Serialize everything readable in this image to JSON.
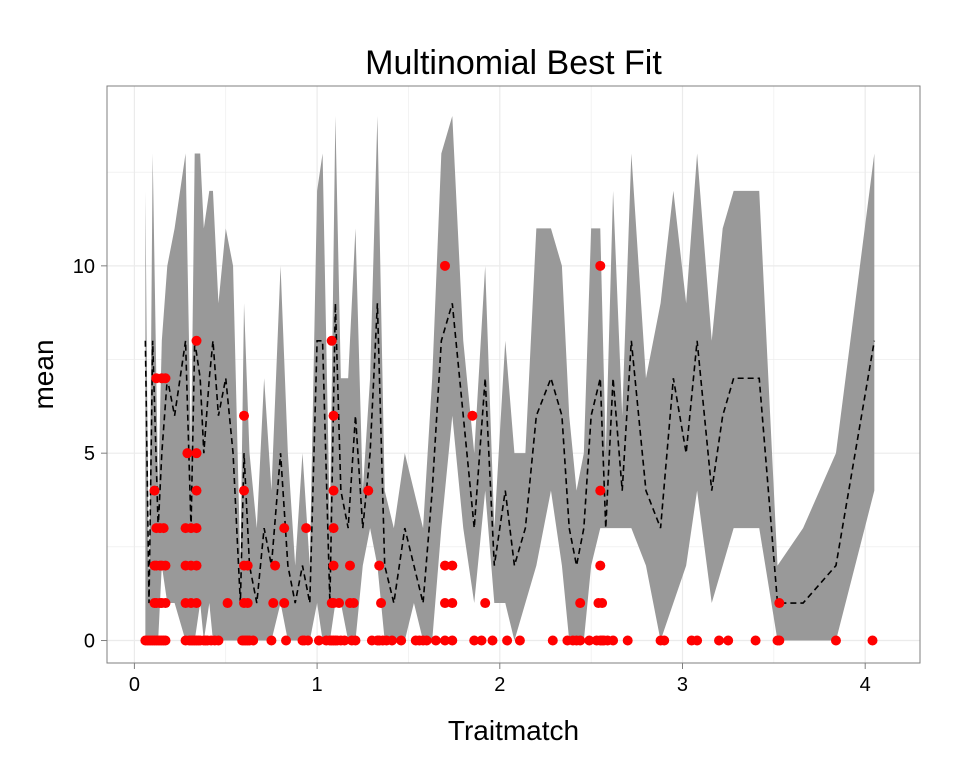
{
  "chart_data": {
    "type": "scatter",
    "title": "Multinomial Best Fit",
    "xlabel": "Traitmatch",
    "ylabel": "mean",
    "xlim": [
      -0.15,
      4.3
    ],
    "ylim": [
      -0.6,
      14.8
    ],
    "x_ticks": [
      "0",
      "1",
      "2",
      "3",
      "4"
    ],
    "y_ticks": [
      "0",
      "5",
      "10"
    ],
    "grid": true,
    "colors": {
      "points": "#ff0000",
      "band": "#999999",
      "line": "#000000",
      "grid": "#ebebeb"
    },
    "series": [
      {
        "type": "ribbon",
        "x": [
          0.06,
          0.08,
          0.1,
          0.13,
          0.15,
          0.18,
          0.22,
          0.28,
          0.31,
          0.33,
          0.36,
          0.38,
          0.41,
          0.43,
          0.46,
          0.5,
          0.54,
          0.58,
          0.6,
          0.63,
          0.67,
          0.71,
          0.75,
          0.8,
          0.84,
          0.88,
          0.92,
          0.96,
          1.0,
          1.03,
          1.07,
          1.1,
          1.13,
          1.17,
          1.21,
          1.25,
          1.29,
          1.33,
          1.37,
          1.42,
          1.48,
          1.53,
          1.58,
          1.63,
          1.68,
          1.74,
          1.8,
          1.86,
          1.92,
          1.97,
          2.03,
          2.08,
          2.14,
          2.2,
          2.28,
          2.34,
          2.38,
          2.42,
          2.46,
          2.5,
          2.55,
          2.58,
          2.62,
          2.67,
          2.72,
          2.8,
          2.88,
          2.95,
          3.02,
          3.08,
          3.16,
          3.22,
          3.28,
          3.35,
          3.42,
          3.52,
          3.66,
          3.84,
          4.05
        ],
        "ymin": [
          0,
          0,
          0,
          0,
          2,
          1,
          1,
          0,
          0,
          0,
          1,
          0,
          1,
          0,
          0,
          0,
          0,
          0,
          0,
          0,
          0,
          0,
          0,
          1,
          0,
          0,
          0,
          0,
          1,
          0,
          0,
          1,
          1,
          0,
          0,
          2,
          3,
          2,
          0,
          0,
          0,
          1,
          0,
          0,
          3,
          6,
          3,
          1,
          4,
          1,
          1,
          0,
          1,
          2,
          4,
          2,
          0,
          0,
          0,
          2,
          3,
          3,
          3,
          3,
          3,
          2,
          0,
          1,
          2,
          4,
          1,
          2,
          3,
          3,
          3,
          0,
          0,
          0,
          4
        ],
        "ymax": [
          12,
          1,
          13,
          4,
          8,
          10,
          11,
          13,
          5,
          13,
          13,
          11,
          12,
          12,
          9,
          11,
          10,
          2,
          9,
          5,
          3,
          7,
          4,
          10,
          5,
          2,
          5,
          2,
          12,
          13,
          3,
          14,
          7,
          7,
          11,
          4,
          7,
          14,
          4,
          3,
          5,
          4,
          3,
          7,
          13,
          14,
          8,
          5,
          10,
          3,
          8,
          5,
          5,
          11,
          11,
          10,
          6,
          4,
          5,
          11,
          11,
          5,
          12,
          6,
          13,
          7,
          9,
          12,
          9,
          13,
          8,
          11,
          12,
          12,
          12,
          2,
          3,
          5,
          13
        ],
        "mean": [
          8,
          1,
          8,
          3,
          5,
          7,
          6,
          8,
          3,
          8,
          7,
          5,
          7,
          8,
          6,
          7,
          5,
          1,
          5,
          2,
          1,
          3,
          2,
          5,
          2,
          1,
          2,
          1,
          8,
          8,
          1,
          9,
          4,
          3,
          6,
          3,
          5,
          9,
          2,
          1,
          3,
          2,
          1,
          4,
          8,
          9,
          6,
          3,
          7,
          2,
          4,
          2,
          3,
          6,
          7,
          6,
          3,
          2,
          3,
          6,
          7,
          3,
          7,
          4,
          8,
          4,
          3,
          7,
          5,
          8,
          4,
          6,
          7,
          7,
          7,
          1,
          1,
          2,
          8
        ]
      },
      {
        "type": "points",
        "points": [
          [
            0.06,
            0
          ],
          [
            0.07,
            0
          ],
          [
            0.08,
            0
          ],
          [
            0.09,
            0
          ],
          [
            0.1,
            0
          ],
          [
            0.11,
            0
          ],
          [
            0.12,
            0
          ],
          [
            0.13,
            0
          ],
          [
            0.14,
            0
          ],
          [
            0.15,
            0
          ],
          [
            0.16,
            0
          ],
          [
            0.17,
            0
          ],
          [
            0.11,
            4
          ],
          [
            0.12,
            7
          ],
          [
            0.15,
            7
          ],
          [
            0.17,
            7
          ],
          [
            0.11,
            2
          ],
          [
            0.12,
            2
          ],
          [
            0.14,
            2
          ],
          [
            0.15,
            2
          ],
          [
            0.17,
            2
          ],
          [
            0.11,
            1
          ],
          [
            0.12,
            1
          ],
          [
            0.14,
            1
          ],
          [
            0.15,
            1
          ],
          [
            0.17,
            1
          ],
          [
            0.12,
            3
          ],
          [
            0.14,
            3
          ],
          [
            0.16,
            3
          ],
          [
            0.28,
            0
          ],
          [
            0.3,
            0
          ],
          [
            0.31,
            0
          ],
          [
            0.32,
            0
          ],
          [
            0.33,
            0
          ],
          [
            0.34,
            0
          ],
          [
            0.35,
            0
          ],
          [
            0.36,
            0
          ],
          [
            0.38,
            0
          ],
          [
            0.39,
            0
          ],
          [
            0.4,
            0
          ],
          [
            0.42,
            0
          ],
          [
            0.44,
            0
          ],
          [
            0.46,
            0
          ],
          [
            0.29,
            5
          ],
          [
            0.34,
            5
          ],
          [
            0.34,
            8
          ],
          [
            0.28,
            3
          ],
          [
            0.31,
            3
          ],
          [
            0.34,
            3
          ],
          [
            0.28,
            2
          ],
          [
            0.31,
            2
          ],
          [
            0.34,
            2
          ],
          [
            0.28,
            1
          ],
          [
            0.31,
            1
          ],
          [
            0.34,
            1
          ],
          [
            0.34,
            4
          ],
          [
            0.51,
            1
          ],
          [
            0.59,
            0
          ],
          [
            0.6,
            0
          ],
          [
            0.61,
            0
          ],
          [
            0.62,
            0
          ],
          [
            0.63,
            0
          ],
          [
            0.6,
            6
          ],
          [
            0.6,
            4
          ],
          [
            0.6,
            2
          ],
          [
            0.62,
            2
          ],
          [
            0.6,
            1
          ],
          [
            0.62,
            1
          ],
          [
            0.65,
            0
          ],
          [
            0.75,
            0
          ],
          [
            0.76,
            1
          ],
          [
            0.77,
            2
          ],
          [
            0.82,
            3
          ],
          [
            0.82,
            1
          ],
          [
            0.83,
            0
          ],
          [
            0.92,
            0
          ],
          [
            0.93,
            0
          ],
          [
            0.94,
            3
          ],
          [
            0.95,
            0
          ],
          [
            1.01,
            0
          ],
          [
            1.05,
            0
          ],
          [
            1.07,
            0
          ],
          [
            1.08,
            0
          ],
          [
            1.09,
            0
          ],
          [
            1.1,
            0
          ],
          [
            1.11,
            0
          ],
          [
            1.13,
            0
          ],
          [
            1.15,
            0
          ],
          [
            1.08,
            8
          ],
          [
            1.09,
            6
          ],
          [
            1.09,
            4
          ],
          [
            1.09,
            3
          ],
          [
            1.09,
            2
          ],
          [
            1.09,
            1
          ],
          [
            1.08,
            1
          ],
          [
            1.12,
            1
          ],
          [
            1.18,
            2
          ],
          [
            1.2,
            1
          ],
          [
            1.18,
            1
          ],
          [
            1.19,
            0
          ],
          [
            1.21,
            0
          ],
          [
            1.28,
            4
          ],
          [
            1.3,
            0
          ],
          [
            1.33,
            0
          ],
          [
            1.34,
            0
          ],
          [
            1.34,
            2
          ],
          [
            1.35,
            1
          ],
          [
            1.36,
            0
          ],
          [
            1.38,
            0
          ],
          [
            1.41,
            0
          ],
          [
            1.46,
            0
          ],
          [
            1.54,
            0
          ],
          [
            1.56,
            0
          ],
          [
            1.58,
            0
          ],
          [
            1.6,
            0
          ],
          [
            1.65,
            0
          ],
          [
            1.7,
            0
          ],
          [
            1.74,
            0
          ],
          [
            1.7,
            10
          ],
          [
            1.7,
            2
          ],
          [
            1.74,
            2
          ],
          [
            1.7,
            1
          ],
          [
            1.74,
            1
          ],
          [
            1.85,
            6
          ],
          [
            1.86,
            0
          ],
          [
            1.9,
            0
          ],
          [
            1.92,
            1
          ],
          [
            1.96,
            0
          ],
          [
            2.04,
            0
          ],
          [
            2.11,
            0
          ],
          [
            2.29,
            0
          ],
          [
            2.37,
            0
          ],
          [
            2.4,
            0
          ],
          [
            2.42,
            0
          ],
          [
            2.44,
            0
          ],
          [
            2.44,
            1
          ],
          [
            2.49,
            0
          ],
          [
            2.53,
            0
          ],
          [
            2.55,
            0
          ],
          [
            2.56,
            0
          ],
          [
            2.57,
            0
          ],
          [
            2.59,
            0
          ],
          [
            2.62,
            0
          ],
          [
            2.55,
            10
          ],
          [
            2.55,
            4
          ],
          [
            2.55,
            2
          ],
          [
            2.54,
            1
          ],
          [
            2.56,
            1
          ],
          [
            2.7,
            0
          ],
          [
            2.88,
            0
          ],
          [
            2.9,
            0
          ],
          [
            3.05,
            0
          ],
          [
            3.08,
            0
          ],
          [
            3.2,
            0
          ],
          [
            3.25,
            0
          ],
          [
            3.4,
            0
          ],
          [
            3.52,
            0
          ],
          [
            3.53,
            0
          ],
          [
            3.53,
            1
          ],
          [
            3.84,
            0
          ],
          [
            4.04,
            0
          ]
        ]
      }
    ]
  }
}
